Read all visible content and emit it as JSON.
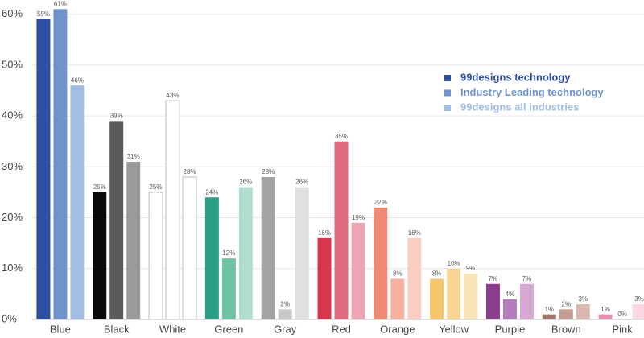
{
  "chart_data": {
    "type": "bar",
    "categories": [
      "Blue",
      "Black",
      "White",
      "Green",
      "Gray",
      "Red",
      "Orange",
      "Yellow",
      "Purple",
      "Brown",
      "Pink"
    ],
    "series": [
      {
        "name": "99designs technology",
        "color": "#2d4fa0",
        "values": [
          59,
          25,
          25,
          24,
          28,
          16,
          22,
          8,
          7,
          1,
          1
        ],
        "value_labels": [
          "59%",
          "25%",
          "25%",
          "24%",
          "28%",
          "16%",
          "22%",
          "8%",
          "7%",
          "1%",
          "1%"
        ],
        "colors": [
          "#2d4fa0",
          "#0a0a0a",
          "#ffffff",
          "#2aa187",
          "#a3a3a3",
          "#d9374e",
          "#f08a72",
          "#f2c66d",
          "#8a3f8c",
          "#a0766c",
          "#e38fb6"
        ]
      },
      {
        "name": "Industry Leading technology",
        "color": "#7093cc",
        "values": [
          61,
          39,
          43,
          12,
          2,
          35,
          8,
          10,
          4,
          2,
          0
        ],
        "value_labels": [
          "61%",
          "39%",
          "43%",
          "12%",
          "2%",
          "35%",
          "8%",
          "10%",
          "4%",
          "2%",
          "0%"
        ],
        "colors": [
          "#7093cc",
          "#5a5a5a",
          "#ffffff",
          "#6fc4a4",
          "#c8c8c8",
          "#e0697f",
          "#f5b0a0",
          "#f6d696",
          "#b37cbf",
          "#c49c92",
          "#f0b8d0"
        ]
      },
      {
        "name": "99designs all industries",
        "color": "#a3bde3",
        "values": [
          46,
          31,
          28,
          26,
          26,
          19,
          16,
          9,
          7,
          3,
          3
        ],
        "value_labels": [
          "46%",
          "31%",
          "28%",
          "26%",
          "26%",
          "19%",
          "16%",
          "9%",
          "7%",
          "3%",
          "3%"
        ],
        "colors": [
          "#a3bde3",
          "#9a9a9a",
          "#ffffff",
          "#b2dfcd",
          "#e0e0e0",
          "#eea5b3",
          "#f9cdc3",
          "#f8e3b6",
          "#d8a8d4",
          "#d8b8ae",
          "#f9d7e5"
        ]
      }
    ],
    "ylim": [
      0,
      62
    ],
    "yticks": [
      {
        "value": 0,
        "label": "0%"
      },
      {
        "value": 10,
        "label": "10%"
      },
      {
        "value": 20,
        "label": "20%"
      },
      {
        "value": 30,
        "label": "30%"
      },
      {
        "value": 40,
        "label": "40%"
      },
      {
        "value": 50,
        "label": "50%"
      },
      {
        "value": 60,
        "label": "60%"
      }
    ],
    "grid": true,
    "legend": "upper right"
  }
}
